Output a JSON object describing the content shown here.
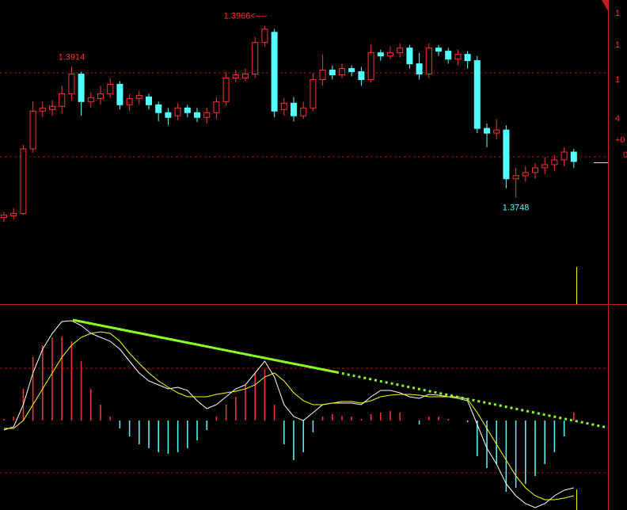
{
  "right_axis_labels": [
    "1",
    "1",
    "1",
    "4",
    "+0",
    "0"
  ],
  "chart_data": [
    {
      "type": "candlestick",
      "up_color": "#ff3232",
      "down_color": "#54ffff",
      "ylim": [
        1.3613,
        1.3999
      ],
      "open": [
        1.3723,
        1.3725,
        1.3728,
        1.381,
        1.3858,
        1.386,
        1.3864,
        1.388,
        1.3905,
        1.387,
        1.3874,
        1.388,
        1.3892,
        1.3866,
        1.3874,
        1.3876,
        1.3866,
        1.3856,
        1.3852,
        1.3862,
        1.3856,
        1.385,
        1.3856,
        1.387,
        1.39,
        1.39,
        1.3905,
        1.3945,
        1.3958,
        1.386,
        1.3868,
        1.3852,
        1.3862,
        1.3898,
        1.391,
        1.3904,
        1.3912,
        1.3908,
        1.3898,
        1.3932,
        1.3928,
        1.3932,
        1.3938,
        1.3918,
        1.3905,
        1.3938,
        1.3934,
        1.3924,
        1.393,
        1.3922,
        1.3836,
        1.383,
        1.3834,
        1.3772,
        1.3776,
        1.378,
        1.3786,
        1.379,
        1.3796,
        1.3806
      ],
      "high": [
        1.373,
        1.3735,
        1.3815,
        1.387,
        1.387,
        1.3872,
        1.389,
        1.3914,
        1.3908,
        1.3882,
        1.389,
        1.39,
        1.3896,
        1.388,
        1.3884,
        1.388,
        1.387,
        1.3862,
        1.3868,
        1.3866,
        1.3862,
        1.3862,
        1.3876,
        1.3908,
        1.391,
        1.3912,
        1.3952,
        1.3966,
        1.3962,
        1.3875,
        1.3876,
        1.387,
        1.3906,
        1.393,
        1.3916,
        1.3918,
        1.3916,
        1.3914,
        1.3942,
        1.3936,
        1.394,
        1.3944,
        1.3942,
        1.3932,
        1.3944,
        1.3942,
        1.3938,
        1.3936,
        1.3934,
        1.3928,
        1.3842,
        1.3848,
        1.384,
        1.3786,
        1.3788,
        1.3792,
        1.38,
        1.3802,
        1.3812,
        1.381
      ],
      "low": [
        1.3718,
        1.372,
        1.3726,
        1.3805,
        1.385,
        1.3852,
        1.3855,
        1.3872,
        1.3852,
        1.3862,
        1.3866,
        1.3875,
        1.386,
        1.3858,
        1.3866,
        1.386,
        1.3845,
        1.384,
        1.3846,
        1.385,
        1.3844,
        1.3842,
        1.3848,
        1.3865,
        1.3895,
        1.3896,
        1.39,
        1.394,
        1.385,
        1.3852,
        1.3845,
        1.3848,
        1.3858,
        1.389,
        1.3898,
        1.39,
        1.3902,
        1.389,
        1.3894,
        1.3922,
        1.3924,
        1.3926,
        1.3912,
        1.3898,
        1.39,
        1.3928,
        1.3918,
        1.3916,
        1.3912,
        1.383,
        1.3812,
        1.3822,
        1.376,
        1.3748,
        1.3768,
        1.3772,
        1.3778,
        1.3782,
        1.3788,
        1.3786
      ],
      "close": [
        1.3726,
        1.3728,
        1.381,
        1.3858,
        1.3862,
        1.3864,
        1.388,
        1.3905,
        1.387,
        1.3875,
        1.388,
        1.3892,
        1.3866,
        1.3874,
        1.3878,
        1.3866,
        1.3856,
        1.385,
        1.3862,
        1.3856,
        1.385,
        1.3856,
        1.387,
        1.39,
        1.3904,
        1.3905,
        1.3945,
        1.3962,
        1.3858,
        1.3868,
        1.3852,
        1.3862,
        1.3898,
        1.391,
        1.3904,
        1.3912,
        1.3908,
        1.3898,
        1.3932,
        1.3928,
        1.3932,
        1.3938,
        1.3918,
        1.3905,
        1.3938,
        1.3934,
        1.3924,
        1.393,
        1.3922,
        1.3836,
        1.383,
        1.3834,
        1.3772,
        1.3776,
        1.378,
        1.3786,
        1.379,
        1.3796,
        1.3806,
        1.3794
      ],
      "annotations": [
        {
          "text": "1.3914",
          "value": 1.3914
        },
        {
          "text": "1.3966<----",
          "value": 1.3966
        },
        {
          "text": "1.3748",
          "value": 1.3748
        }
      ]
    },
    {
      "type": "macd",
      "ylim": [
        -1.13,
        1.46
      ],
      "histogram": [
        0.02,
        0.05,
        0.4,
        0.8,
        0.95,
        1.05,
        1.06,
        1.0,
        0.75,
        0.4,
        0.2,
        0.05,
        -0.1,
        -0.2,
        -0.3,
        -0.35,
        -0.4,
        -0.42,
        -0.4,
        -0.35,
        -0.25,
        -0.12,
        0.05,
        0.2,
        0.3,
        0.45,
        0.6,
        0.65,
        0.2,
        -0.3,
        -0.5,
        -0.4,
        -0.15,
        0.05,
        0.08,
        0.06,
        0.05,
        0.02,
        0.08,
        0.1,
        0.12,
        0.1,
        0.0,
        -0.05,
        0.05,
        0.05,
        0.02,
        0.0,
        -0.02,
        -0.45,
        -0.6,
        -0.55,
        -0.9,
        -0.85,
        -0.8,
        -0.7,
        -0.55,
        -0.4,
        -0.2,
        0.1
      ],
      "up_color": "#ff3232",
      "down_color": "#54ffff",
      "series": [
        {
          "color": "#ffffff",
          "values": [
            -0.12,
            -0.08,
            0.2,
            0.6,
            0.9,
            1.1,
            1.25,
            1.26,
            1.2,
            1.1,
            1.05,
            1.0,
            0.9,
            0.75,
            0.6,
            0.5,
            0.45,
            0.4,
            0.42,
            0.38,
            0.25,
            0.15,
            0.2,
            0.3,
            0.4,
            0.45,
            0.6,
            0.75,
            0.55,
            0.2,
            0.05,
            0.0,
            0.1,
            0.2,
            0.22,
            0.22,
            0.22,
            0.2,
            0.3,
            0.38,
            0.38,
            0.35,
            0.3,
            0.28,
            0.33,
            0.32,
            0.3,
            0.28,
            0.25,
            -0.05,
            -0.35,
            -0.55,
            -0.8,
            -0.95,
            -1.05,
            -1.1,
            -1.05,
            -0.95,
            -0.88,
            -0.85
          ]
        },
        {
          "color": "#ffff00",
          "values": [
            -0.1,
            -0.1,
            0.0,
            0.2,
            0.4,
            0.6,
            0.8,
            0.95,
            1.05,
            1.1,
            1.12,
            1.1,
            1.0,
            0.85,
            0.72,
            0.6,
            0.5,
            0.42,
            0.35,
            0.3,
            0.3,
            0.3,
            0.33,
            0.35,
            0.37,
            0.4,
            0.45,
            0.55,
            0.6,
            0.5,
            0.35,
            0.25,
            0.2,
            0.2,
            0.22,
            0.24,
            0.24,
            0.22,
            0.25,
            0.3,
            0.32,
            0.33,
            0.33,
            0.32,
            0.3,
            0.3,
            0.3,
            0.3,
            0.27,
            0.1,
            -0.1,
            -0.3,
            -0.5,
            -0.7,
            -0.85,
            -0.95,
            -1.0,
            -1.0,
            -0.98,
            -0.95
          ]
        }
      ]
    }
  ]
}
